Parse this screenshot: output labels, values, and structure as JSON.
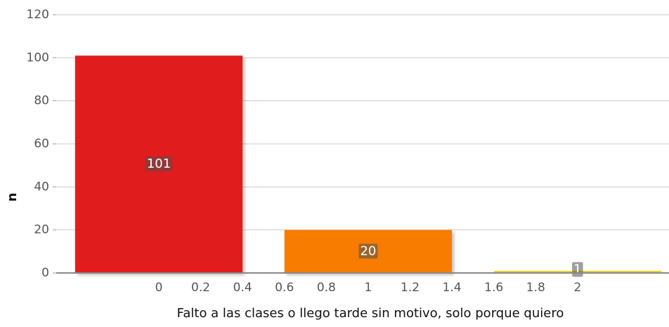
{
  "chart_data": {
    "type": "bar",
    "x_label": "Falto a las clases o llego tarde sin motivo, solo porque quiero",
    "y_label": "n",
    "x": [
      0,
      1,
      2
    ],
    "values": [
      101,
      20,
      1
    ],
    "bar_width": 0.8,
    "colors": [
      "#e01a1f",
      "#f77b00",
      "#f2d21c"
    ],
    "xlim": [
      -0.49,
      2.43
    ],
    "xticks": [
      0,
      0.2,
      0.4,
      0.6,
      0.8,
      1,
      1.2,
      1.4,
      1.6,
      1.8,
      2
    ],
    "ylim": [
      0,
      120
    ],
    "yticks": [
      0,
      20,
      40,
      60,
      80,
      100,
      120
    ],
    "grid": true
  }
}
